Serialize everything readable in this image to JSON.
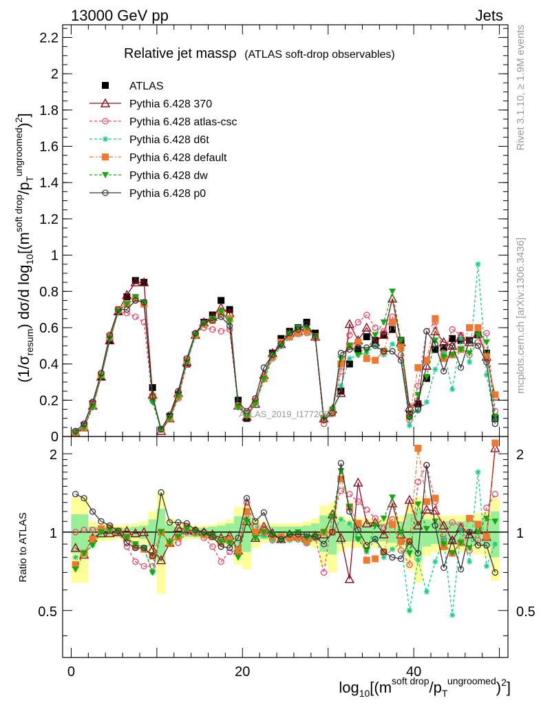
{
  "header": {
    "left": "13000 GeV pp",
    "right": "Jets"
  },
  "plot_title": {
    "main": "Relative jet massρ",
    "sub": "(ATLAS soft-drop observables)"
  },
  "watermark": "ATLAS_2019_I1772062",
  "side_text": {
    "rivet": "Rivet 3.1.10, ≥ 1.9M events",
    "source": "mcplots.cern.ch [arXiv:1306.3436]"
  },
  "axes": {
    "ylabel_main": "(1/σ_resum) dσ/d log10[(m^soft drop/pT^ungroomed)^2]",
    "ylabel_ratio": "Ratio to ATLAS",
    "xlabel": "log10[(m^soft drop/pT^ungroomed)^2]"
  },
  "chart_data": [
    {
      "panel": "main",
      "type": "line",
      "x": [
        0.5,
        1.5,
        2.5,
        3.5,
        4.5,
        5.5,
        6.5,
        7.5,
        8.5,
        9.5,
        10.5,
        11.5,
        12.5,
        13.5,
        14.5,
        15.5,
        16.5,
        17.5,
        18.5,
        19.5,
        20.5,
        21.5,
        22.5,
        23.5,
        24.5,
        25.5,
        26.5,
        27.5,
        28.5,
        29.5,
        30.5,
        31.5,
        32.5,
        33.5,
        34.5,
        35.5,
        36.5,
        37.5,
        38.5,
        39.5,
        40.5,
        41.5,
        42.5,
        43.5,
        44.5,
        45.5,
        46.5,
        47.5,
        48.5,
        49.5
      ],
      "xlim": [
        -1,
        51
      ],
      "ylim": [
        0,
        2.27
      ],
      "yticks": [
        0,
        0.2,
        0.4,
        0.6,
        0.8,
        1,
        1.2,
        1.4,
        1.6,
        1.8,
        2,
        2.2
      ],
      "ytick_labels": [
        "0",
        "0.2",
        "0.4",
        "0.6",
        "0.8",
        "1",
        "1.2",
        "1.4",
        "1.6",
        "1.8",
        "2",
        "2.2"
      ],
      "xticks": [
        0,
        20,
        40
      ],
      "xtick_labels": [
        "0",
        "20",
        "40"
      ],
      "series": [
        {
          "name": "ATLAS",
          "color": "#000000",
          "marker": "square",
          "values": [
            0.02,
            0.06,
            0.18,
            0.33,
            0.53,
            0.69,
            0.77,
            0.86,
            0.85,
            0.27,
            0.04,
            0.11,
            0.23,
            0.4,
            0.56,
            0.63,
            0.67,
            0.75,
            0.7,
            0.2,
            0.1,
            0.19,
            0.32,
            0.46,
            0.54,
            0.58,
            0.6,
            0.63,
            0.57,
            0.1,
            0.13,
            0.25,
            0.4,
            0.48,
            0.55,
            0.53,
            0.56,
            0.59,
            0.53,
            0.12,
            0.18,
            0.32,
            0.48,
            0.49,
            0.54,
            0.53,
            0.53,
            0.56,
            0.46,
            0.1
          ]
        },
        {
          "name": "Pythia 6.428 370",
          "color": "#8b0a1a",
          "marker": "triangle-open",
          "values": [
            0.02,
            0.05,
            0.17,
            0.33,
            0.53,
            0.69,
            0.78,
            0.85,
            0.85,
            0.23,
            0.03,
            0.1,
            0.24,
            0.41,
            0.56,
            0.63,
            0.66,
            0.71,
            0.68,
            0.17,
            0.11,
            0.18,
            0.34,
            0.46,
            0.51,
            0.57,
            0.58,
            0.6,
            0.55,
            0.1,
            0.15,
            0.24,
            0.62,
            0.53,
            0.6,
            0.52,
            0.56,
            0.76,
            0.52,
            0.16,
            0.19,
            0.39,
            0.58,
            0.52,
            0.5,
            0.55,
            0.52,
            0.57,
            0.44,
            0.22
          ]
        },
        {
          "name": "Pythia 6.428 atlas-csc",
          "color": "#ee4466",
          "marker": "circle-open",
          "values": [
            0.02,
            0.06,
            0.18,
            0.34,
            0.54,
            0.69,
            0.68,
            0.66,
            0.63,
            0.2,
            0.04,
            0.1,
            0.21,
            0.4,
            0.57,
            0.6,
            0.59,
            0.58,
            0.59,
            0.17,
            0.13,
            0.2,
            0.33,
            0.43,
            0.5,
            0.55,
            0.57,
            0.57,
            0.54,
            0.07,
            0.15,
            0.36,
            0.56,
            0.63,
            0.67,
            0.6,
            0.58,
            0.66,
            0.45,
            0.09,
            0.28,
            0.58,
            0.63,
            0.46,
            0.59,
            0.56,
            0.45,
            0.52,
            0.57,
            0.14
          ]
        },
        {
          "name": "Pythia 6.428 d6t",
          "color": "#11cc88",
          "marker": "star",
          "values": [
            0.02,
            0.05,
            0.16,
            0.33,
            0.54,
            0.69,
            0.73,
            0.77,
            0.74,
            0.19,
            0.04,
            0.1,
            0.22,
            0.41,
            0.55,
            0.62,
            0.64,
            0.68,
            0.63,
            0.17,
            0.12,
            0.18,
            0.31,
            0.43,
            0.5,
            0.54,
            0.56,
            0.57,
            0.55,
            0.1,
            0.13,
            0.28,
            0.43,
            0.45,
            0.46,
            0.5,
            0.45,
            0.51,
            0.48,
            0.06,
            0.14,
            0.19,
            0.37,
            0.46,
            0.26,
            0.54,
            0.41,
            0.95,
            0.34,
            0.09
          ]
        },
        {
          "name": "Pythia 6.428 default",
          "color": "#f07830",
          "marker": "square",
          "values": [
            0.02,
            0.05,
            0.17,
            0.34,
            0.55,
            0.7,
            0.73,
            0.76,
            0.73,
            0.22,
            0.04,
            0.1,
            0.22,
            0.42,
            0.56,
            0.62,
            0.64,
            0.68,
            0.65,
            0.17,
            0.12,
            0.19,
            0.32,
            0.44,
            0.52,
            0.55,
            0.57,
            0.58,
            0.55,
            0.1,
            0.13,
            0.4,
            0.5,
            0.52,
            0.43,
            0.42,
            0.47,
            0.63,
            0.49,
            0.11,
            0.38,
            0.42,
            0.65,
            0.43,
            0.45,
            0.48,
            0.6,
            0.6,
            0.44,
            0.23
          ]
        },
        {
          "name": "Pythia 6.428 dw",
          "color": "#11aa11",
          "marker": "triangle-down",
          "values": [
            0.02,
            0.05,
            0.16,
            0.33,
            0.54,
            0.69,
            0.73,
            0.77,
            0.74,
            0.19,
            0.04,
            0.1,
            0.22,
            0.41,
            0.56,
            0.62,
            0.65,
            0.69,
            0.64,
            0.16,
            0.11,
            0.18,
            0.32,
            0.45,
            0.5,
            0.57,
            0.6,
            0.6,
            0.55,
            0.1,
            0.15,
            0.43,
            0.5,
            0.45,
            0.47,
            0.56,
            0.63,
            0.8,
            0.53,
            0.1,
            0.23,
            0.33,
            0.53,
            0.44,
            0.45,
            0.48,
            0.46,
            0.56,
            0.52,
            0.11
          ]
        },
        {
          "name": "Pythia 6.428 p0",
          "color": "#333333",
          "marker": "circle-open",
          "values": [
            0.03,
            0.07,
            0.19,
            0.35,
            0.56,
            0.7,
            0.7,
            0.75,
            0.74,
            0.22,
            0.04,
            0.12,
            0.25,
            0.43,
            0.57,
            0.63,
            0.64,
            0.66,
            0.61,
            0.19,
            0.14,
            0.21,
            0.38,
            0.45,
            0.51,
            0.57,
            0.59,
            0.62,
            0.55,
            0.09,
            0.13,
            0.46,
            0.48,
            0.49,
            0.49,
            0.5,
            0.47,
            0.47,
            0.42,
            0.11,
            0.15,
            0.58,
            0.51,
            0.36,
            0.5,
            0.38,
            0.53,
            0.5,
            0.41,
            0.07
          ]
        }
      ]
    },
    {
      "panel": "ratio",
      "type": "line",
      "ylim": [
        0.33,
        2.33
      ],
      "yticks": [
        0.5,
        1,
        2
      ],
      "ytick_labels": [
        "0.5",
        "1",
        "2"
      ],
      "reference": 1,
      "band_inner": [
        0.17,
        0.17,
        0.05,
        0.05,
        0.04,
        0.04,
        0.04,
        0.05,
        0.06,
        0.12,
        0.23,
        0.07,
        0.05,
        0.04,
        0.04,
        0.04,
        0.05,
        0.06,
        0.08,
        0.15,
        0.16,
        0.08,
        0.06,
        0.05,
        0.05,
        0.05,
        0.05,
        0.06,
        0.08,
        0.16,
        0.18,
        0.1,
        0.08,
        0.08,
        0.08,
        0.08,
        0.08,
        0.09,
        0.1,
        0.18,
        0.22,
        0.12,
        0.1,
        0.1,
        0.1,
        0.1,
        0.1,
        0.11,
        0.12,
        0.2
      ],
      "band_outer": [
        0.36,
        0.36,
        0.1,
        0.08,
        0.07,
        0.06,
        0.07,
        0.08,
        0.1,
        0.2,
        0.42,
        0.13,
        0.08,
        0.06,
        0.06,
        0.06,
        0.07,
        0.09,
        0.12,
        0.25,
        0.28,
        0.13,
        0.09,
        0.08,
        0.08,
        0.08,
        0.08,
        0.1,
        0.13,
        0.26,
        0.3,
        0.16,
        0.13,
        0.13,
        0.13,
        0.13,
        0.13,
        0.15,
        0.16,
        0.28,
        0.36,
        0.19,
        0.16,
        0.16,
        0.16,
        0.16,
        0.16,
        0.18,
        0.2,
        0.35
      ],
      "series": [
        {
          "name": "Pythia 6.428 370",
          "values": [
            0.87,
            0.82,
            0.95,
            0.99,
            0.99,
            1,
            1.01,
            0.99,
            1,
            0.86,
            0.78,
            0.91,
            1.04,
            1.02,
            1.01,
            1,
            0.98,
            0.95,
            0.97,
            0.85,
            1.1,
            0.95,
            1.05,
            0.99,
            0.94,
            0.98,
            0.97,
            0.95,
            0.97,
            0.98,
            1.17,
            0.95,
            0.66,
            1.55,
            1.08,
            1.09,
            0.98,
            1.29,
            0.98,
            1.33,
            1.06,
            1.22,
            1.21,
            1.06,
            0.93,
            1.04,
            0.98,
            1.02,
            0.96,
            2.1
          ]
        },
        {
          "name": "Pythia 6.428 atlas-csc",
          "values": [
            1,
            1.02,
            1.02,
            1.03,
            1.02,
            1,
            0.88,
            0.77,
            0.74,
            0.74,
            1,
            0.91,
            0.91,
            1,
            1.02,
            0.95,
            0.88,
            0.77,
            0.84,
            0.85,
            1.3,
            1.05,
            1.03,
            0.93,
            0.93,
            0.95,
            0.95,
            0.91,
            0.95,
            0.7,
            1.15,
            1.44,
            1.4,
            1.31,
            1.22,
            1.13,
            1.04,
            1.12,
            0.85,
            0.75,
            1.56,
            1.81,
            1.31,
            0.94,
            1.09,
            1.06,
            0.85,
            0.93,
            1.24,
            1.4
          ]
        },
        {
          "name": "Pythia 6.428 d6t",
          "values": [
            0.8,
            0.83,
            0.89,
            1,
            1.02,
            1,
            0.95,
            0.9,
            0.87,
            0.7,
            1,
            0.91,
            0.96,
            1.03,
            0.98,
            0.98,
            0.96,
            0.91,
            0.9,
            0.85,
            1.2,
            0.95,
            0.97,
            0.93,
            0.93,
            0.93,
            0.93,
            0.9,
            0.96,
            1,
            1,
            1.12,
            1.08,
            0.94,
            0.84,
            0.94,
            0.8,
            0.86,
            0.91,
            0.5,
            0.78,
            0.59,
            0.77,
            0.94,
            0.48,
            1.02,
            0.77,
            1.7,
            0.74,
            0.9
          ]
        },
        {
          "name": "Pythia 6.428 default",
          "values": [
            0.75,
            0.83,
            0.94,
            1.03,
            1.04,
            1.01,
            0.95,
            0.88,
            0.86,
            0.81,
            1,
            0.91,
            0.96,
            1.05,
            1,
            0.98,
            0.96,
            0.91,
            0.93,
            0.85,
            1.2,
            1,
            1,
            0.96,
            0.96,
            0.95,
            0.95,
            0.92,
            0.96,
            1,
            1,
            1.6,
            1.25,
            1.08,
            0.78,
            0.79,
            0.84,
            1.07,
            0.92,
            0.92,
            2.1,
            1.31,
            1.35,
            0.88,
            0.83,
            0.91,
            1.13,
            1.07,
            0.96,
            2.2
          ]
        },
        {
          "name": "Pythia 6.428 dw",
          "values": [
            0.72,
            0.83,
            0.89,
            1,
            1.02,
            1,
            0.95,
            0.9,
            0.87,
            0.7,
            1,
            0.91,
            0.96,
            1.03,
            1,
            0.98,
            0.97,
            0.92,
            0.91,
            0.8,
            1.1,
            0.95,
            1,
            0.98,
            0.93,
            0.98,
            1,
            0.95,
            0.96,
            1,
            1.15,
            1.72,
            1.25,
            0.94,
            0.85,
            1.06,
            1.13,
            1.36,
            1,
            0.83,
            1.28,
            1.03,
            1.1,
            0.9,
            0.83,
            0.91,
            0.87,
            1,
            1.13,
            1.1
          ]
        },
        {
          "name": "Pythia 6.428 p0",
          "values": [
            1.4,
            1.35,
            1.2,
            1.1,
            1.06,
            1.01,
            0.91,
            0.87,
            0.87,
            0.81,
            1.42,
            1.09,
            1.09,
            1.08,
            1.02,
            1,
            0.96,
            0.88,
            0.87,
            0.95,
            1.35,
            1.1,
            1.19,
            0.98,
            0.94,
            0.98,
            0.98,
            0.98,
            0.96,
            0.9,
            1,
            1.84,
            1.2,
            1.02,
            0.89,
            0.94,
            0.84,
            0.8,
            0.79,
            0.92,
            0.83,
            1.81,
            1.06,
            0.73,
            0.93,
            0.72,
            1,
            0.89,
            0.89,
            0.7
          ]
        }
      ]
    }
  ]
}
